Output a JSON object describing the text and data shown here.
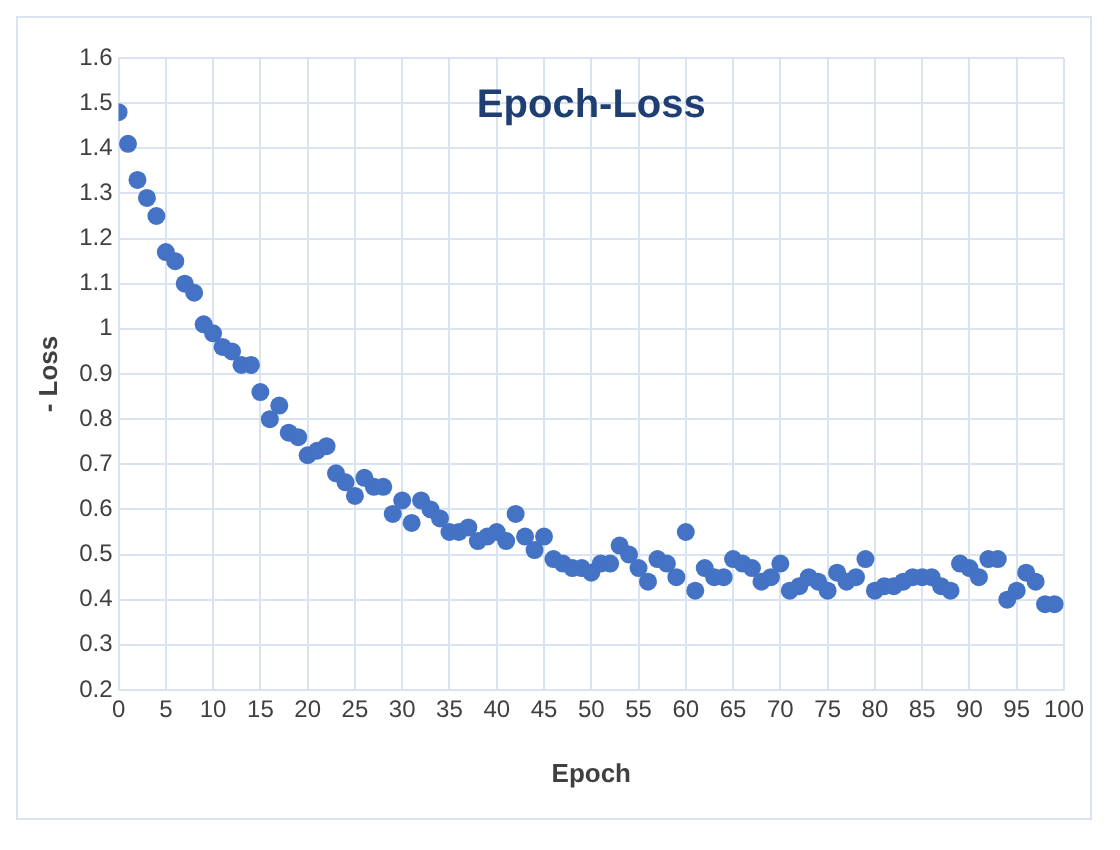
{
  "chart_data": {
    "type": "scatter",
    "title": "Epoch-Loss",
    "xlabel": "Epoch",
    "ylabel": "- Loss",
    "x": [
      0,
      1,
      2,
      3,
      4,
      5,
      6,
      7,
      8,
      9,
      10,
      11,
      12,
      13,
      14,
      15,
      16,
      17,
      18,
      19,
      20,
      21,
      22,
      23,
      24,
      25,
      26,
      27,
      28,
      29,
      30,
      31,
      32,
      33,
      34,
      35,
      36,
      37,
      38,
      39,
      40,
      41,
      42,
      43,
      44,
      45,
      46,
      47,
      48,
      49,
      50,
      51,
      52,
      53,
      54,
      55,
      56,
      57,
      58,
      59,
      60,
      61,
      62,
      63,
      64,
      65,
      66,
      67,
      68,
      69,
      70,
      71,
      72,
      73,
      74,
      75,
      76,
      77,
      78,
      79,
      80,
      81,
      82,
      83,
      84,
      85,
      86,
      87,
      88,
      89,
      90,
      91,
      92,
      93,
      94,
      95,
      96,
      97,
      98,
      99
    ],
    "series": [
      {
        "color": "#4472c4",
        "values": [
          1.48,
          1.41,
          1.33,
          1.29,
          1.25,
          1.17,
          1.15,
          1.1,
          1.08,
          1.01,
          0.99,
          0.96,
          0.95,
          0.92,
          0.92,
          0.86,
          0.8,
          0.83,
          0.77,
          0.76,
          0.72,
          0.73,
          0.74,
          0.68,
          0.66,
          0.63,
          0.67,
          0.65,
          0.65,
          0.59,
          0.62,
          0.57,
          0.62,
          0.6,
          0.58,
          0.55,
          0.55,
          0.56,
          0.53,
          0.54,
          0.55,
          0.53,
          0.59,
          0.54,
          0.51,
          0.54,
          0.49,
          0.48,
          0.47,
          0.47,
          0.46,
          0.48,
          0.48,
          0.52,
          0.5,
          0.47,
          0.44,
          0.49,
          0.48,
          0.45,
          0.55,
          0.42,
          0.47,
          0.45,
          0.45,
          0.49,
          0.48,
          0.47,
          0.44,
          0.45,
          0.48,
          0.42,
          0.43,
          0.45,
          0.44,
          0.42,
          0.46,
          0.44,
          0.45,
          0.49,
          0.42,
          0.43,
          0.43,
          0.44,
          0.45,
          0.45,
          0.45,
          0.43,
          0.42,
          0.48,
          0.47,
          0.45,
          0.49,
          0.49,
          0.4,
          0.42,
          0.46,
          0.44,
          0.39,
          0.39
        ]
      }
    ],
    "xlim": [
      0,
      100
    ],
    "xticks": [
      0,
      5,
      10,
      15,
      20,
      25,
      30,
      35,
      40,
      45,
      50,
      55,
      60,
      65,
      70,
      75,
      80,
      85,
      90,
      95,
      100
    ],
    "ylim": [
      0.2,
      1.6
    ],
    "yticks": [
      0.2,
      0.3,
      0.4,
      0.5,
      0.6,
      0.7,
      0.8,
      0.9,
      1,
      1.1,
      1.2,
      1.3,
      1.4,
      1.5,
      1.6
    ],
    "grid": true,
    "legend": false,
    "marker": "circle"
  }
}
